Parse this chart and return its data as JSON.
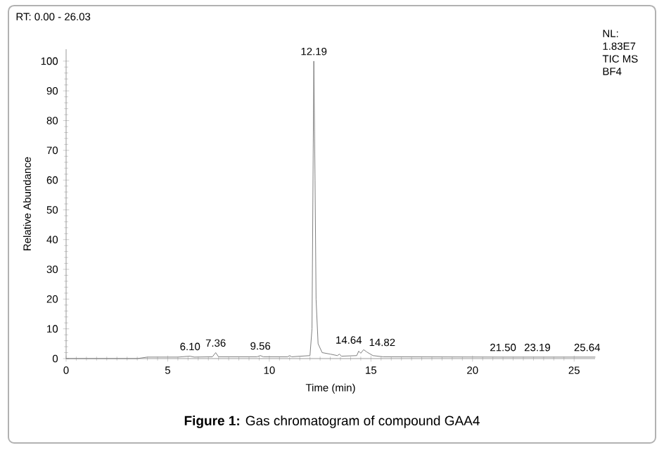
{
  "chart_data": {
    "type": "line",
    "title": "**Figure 1:** Gas chromatogram of compound GAA4",
    "xlabel": "Time (min)",
    "ylabel": "Relative Abundance",
    "xlim": [
      0,
      26.03
    ],
    "ylim": [
      0,
      104
    ],
    "xticks": [
      0,
      5,
      10,
      15,
      20,
      25
    ],
    "yticks": [
      0,
      10,
      20,
      30,
      40,
      50,
      60,
      70,
      80,
      90,
      100
    ],
    "grid": false,
    "marker": "none",
    "line_style": "solid",
    "series": [
      {
        "color": "#808080",
        "x": [
          0,
          3.5,
          4,
          5.5,
          6.1,
          6.3,
          7.2,
          7.36,
          7.5,
          9.4,
          9.56,
          9.7,
          10.9,
          11,
          11.1,
          12.0,
          12.1,
          12.19,
          12.25,
          12.3,
          12.4,
          12.6,
          13.0,
          13.35,
          13.45,
          13.55,
          14.3,
          14.4,
          14.5,
          14.64,
          14.8,
          15.1,
          15.6,
          21.5,
          23.19,
          25.64,
          26.03
        ],
        "values": [
          0,
          0,
          0.5,
          0.5,
          0.8,
          0.5,
          0.6,
          2,
          0.6,
          0.6,
          1,
          0.6,
          0.6,
          1,
          0.6,
          1,
          10,
          100,
          60,
          20,
          5,
          2,
          1.5,
          1,
          1.5,
          0.8,
          1,
          2.5,
          1.8,
          3,
          2.2,
          1,
          0.6,
          0.5,
          0.5,
          0.5,
          0.5
        ]
      }
    ],
    "annotations": [
      "RT: 0.00 - 26.03",
      "NL:",
      "1.83E7",
      "TIC MS",
      "BF4",
      {
        "text": "6.10",
        "x": 6.1,
        "y": 0.8
      },
      {
        "text": "7.36",
        "x": 7.36,
        "y": 2
      },
      {
        "text": "9.56",
        "x": 9.56,
        "y": 1
      },
      {
        "text": "12.19",
        "x": 12.19,
        "y": 100
      },
      {
        "text": "14.64",
        "x": 14.64,
        "y": 3
      },
      {
        "text": "14.82",
        "x": 14.82,
        "y": 2.2
      },
      {
        "text": "21.50",
        "x": 21.5,
        "y": 0.5
      },
      {
        "text": "23.19",
        "x": 23.19,
        "y": 0.5
      },
      {
        "text": "25.64",
        "x": 25.64,
        "y": 0.5
      }
    ]
  }
}
